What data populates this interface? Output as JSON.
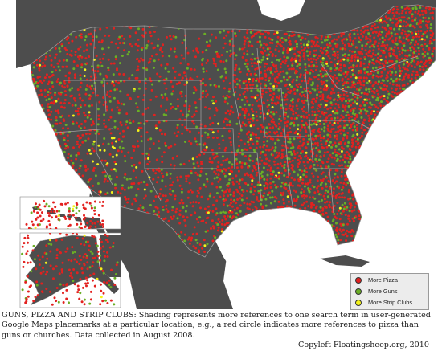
{
  "map": {
    "colors": {
      "water": "#ffffff",
      "land": "#4d4d4d",
      "borders": "#9d9d9d",
      "pizza": "#e3211f",
      "guns": "#6bae25",
      "strip_clubs": "#f3f21b"
    },
    "insets": [
      "Hawaii",
      "Alaska"
    ]
  },
  "legend": {
    "items": [
      {
        "label": "More Pizza",
        "color": "#e3211f"
      },
      {
        "label": "More Guns",
        "color": "#6bae25"
      },
      {
        "label": "More Strip Clubs",
        "color": "#f3f21b"
      }
    ]
  },
  "caption": {
    "text": "GUNS, PIZZA AND STRIP CLUBS: Shading represents more references to one search term in user-generated Google Maps placemarks at a particular location, e.g., a red circle indicates more references to pizza than guns or churches. Data collected in August 2008.",
    "credit": "Copyleft Floatingsheep.org, 2010"
  }
}
